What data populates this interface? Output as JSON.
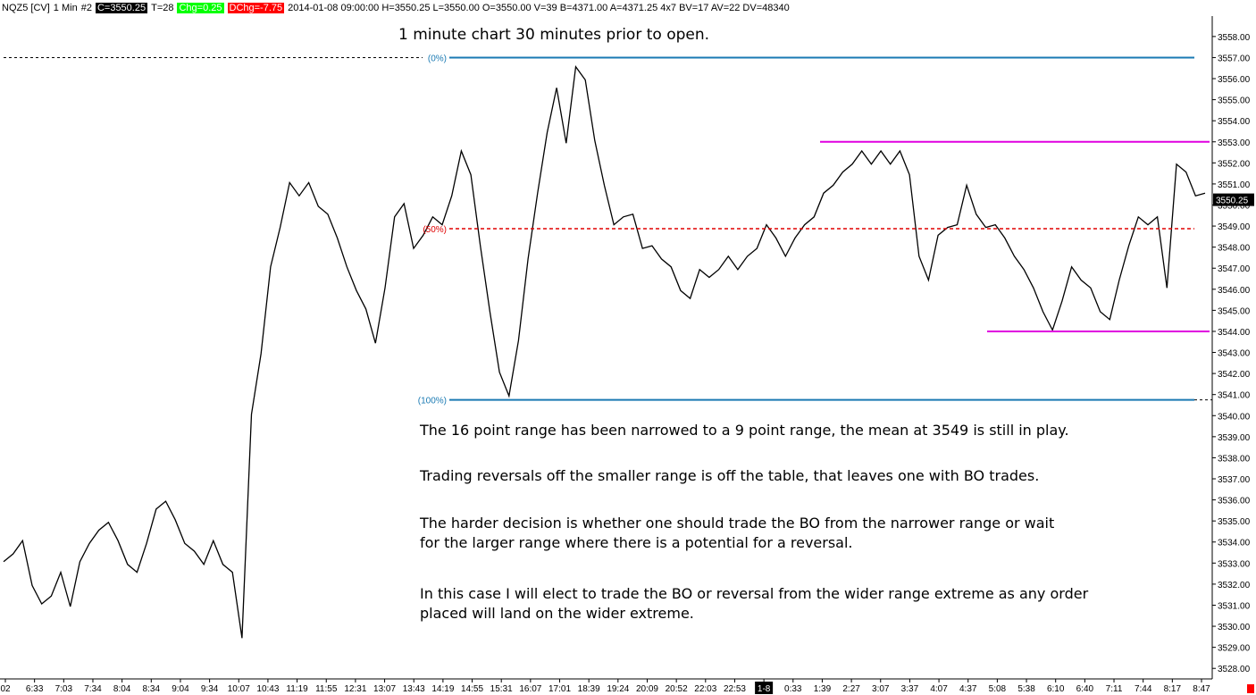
{
  "header": {
    "symbol": "NQZ5 [CV]",
    "interval": "1 Min",
    "chart_no": "#2",
    "close": "C=3550.25",
    "ticks": "T=28",
    "chg": "Chg=0.25",
    "dchg": "DChg=-7.75",
    "rest": "2014-01-08 09:00:00 H=3550.25 L=3550.00 O=3550.00 V=39 B=4371.00 A=4371.25 4x7 BV=17 AV=22 DV=48340",
    "colors": {
      "close_bg": "#000000",
      "chg_bg": "#00ff00",
      "dchg_bg": "#ff0000"
    }
  },
  "annotations": {
    "title": "1 minute chart 30 minutes prior to open.",
    "notes": [
      [
        "The 16 point range has been narrowed to a 9 point range, the mean at 3549 is still in play."
      ],
      [
        "Trading reversals off the smaller range is off the table, that leaves one with BO trades."
      ],
      [
        "The harder decision is whether one should trade the BO from the narrower range or wait",
        "for the larger range where there is a potential for a reversal."
      ],
      [
        "In this case I will elect to trade the BO or reversal from the wider range extreme as any order",
        "placed will land on the wider extreme."
      ]
    ]
  },
  "chart_data": {
    "type": "line",
    "series": [
      {
        "values": [
          3533,
          3533.5,
          3534,
          3532,
          3531,
          3531.5,
          3532.5,
          3531,
          3533,
          3534,
          3534.5,
          3535,
          3534,
          3533,
          3532.5,
          3534,
          3535.5,
          3536,
          3535,
          3534,
          3533.5,
          3533,
          3534,
          3533,
          3532.5,
          3529.5,
          3540,
          3543,
          3547,
          3549,
          3551,
          3550.5,
          3551,
          3550,
          3549.5,
          3548.5,
          3547,
          3546,
          3545,
          3543.5,
          3546,
          3549.5,
          3550,
          3548,
          3548.5,
          3549.5,
          3549,
          3550.5,
          3552.5,
          3551.5,
          3548,
          3545,
          3542,
          3541,
          3543.5,
          3547.5,
          3550.5,
          3553.5,
          3555.5,
          3553,
          3556.5,
          3556,
          3553,
          3551,
          3549,
          3549.5,
          3549.5,
          3548,
          3548,
          3547.5,
          3547,
          3546,
          3545.5,
          3547,
          3546.5,
          3547,
          3547.5,
          3547,
          3547.5,
          3548,
          3549,
          3548.5,
          3547.5,
          3548.5,
          3549,
          3549.5,
          3550.5,
          3551,
          3551.5,
          3552,
          3552.5,
          3552,
          3552.5,
          3552,
          3552.5,
          3551.5,
          3547.5,
          3546.5,
          3548.5,
          3549,
          3549,
          3551,
          3549.5,
          3549,
          3549,
          3548.5,
          3547.5,
          3547,
          3546,
          3545,
          3544,
          3545.5,
          3547,
          3546.5,
          3546,
          3545,
          3544.5,
          3546.5,
          3548,
          3549.5,
          3549,
          3549.5,
          3546,
          3552,
          3551.5,
          3550.5,
          3550.5
        ]
      }
    ],
    "x_tick_labels": [
      "02",
      "6:33",
      "7:03",
      "7:34",
      "8:04",
      "8:34",
      "9:04",
      "9:34",
      "10:07",
      "10:43",
      "11:19",
      "11:55",
      "12:31",
      "13:07",
      "13:43",
      "14:19",
      "14:55",
      "15:31",
      "16:07",
      "17:01",
      "18:39",
      "19:24",
      "20:09",
      "20:52",
      "22:03",
      "22:53",
      "1-8",
      "0:33",
      "1:39",
      "2:27",
      "3:07",
      "3:37",
      "4:07",
      "4:37",
      "5:08",
      "5:38",
      "6:10",
      "6:40",
      "7:11",
      "7:44",
      "8:17",
      "8:47"
    ],
    "y_tick_labels": [
      "3528.00",
      "3529.00",
      "3530.00",
      "3531.00",
      "3532.00",
      "3533.00",
      "3534.00",
      "3535.00",
      "3536.00",
      "3537.00",
      "3538.00",
      "3539.00",
      "3540.00",
      "3541.00",
      "3542.00",
      "3543.00",
      "3544.00",
      "3545.00",
      "3546.00",
      "3547.00",
      "3548.00",
      "3549.00",
      "3550.00",
      "3551.00",
      "3552.00",
      "3553.00",
      "3554.00",
      "3555.00",
      "3556.00",
      "3557.00",
      "3558.00"
    ],
    "ylim": [
      3527.5,
      3558.8
    ],
    "last_price_label": "3550.25",
    "fib_levels": [
      {
        "label": "(0%)",
        "value": 3557
      },
      {
        "label": "(50%)",
        "value": 3548.875
      },
      {
        "label": "(100%)",
        "value": 3540.75
      }
    ],
    "range_lines": [
      {
        "value": 3553
      },
      {
        "value": 3544
      }
    ],
    "colors": {
      "price": "#000000",
      "fib": "#1a7ab3",
      "fib50": "#e00000",
      "range": "#e000e0",
      "axis": "#000000"
    }
  }
}
